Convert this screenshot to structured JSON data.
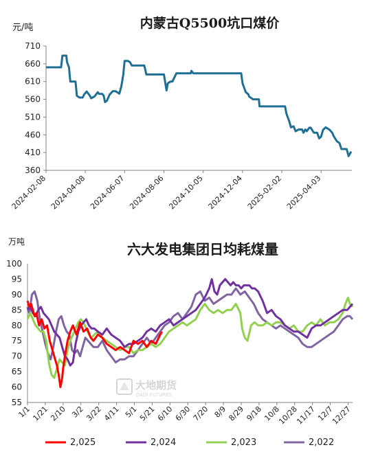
{
  "chart_data": [
    {
      "type": "line",
      "title": "内蒙古Q5500坑口煤价",
      "unit_label": "元/吨",
      "ylim": [
        360,
        710
      ],
      "yticks": [
        360,
        410,
        460,
        510,
        560,
        610,
        660,
        710
      ],
      "xticks": [
        "2024-02-08",
        "2024-04-08",
        "2024-06-07",
        "2024-08-06",
        "2024-10-05",
        "2024-12-04",
        "2025-02-02",
        "2025-04-03"
      ],
      "xrange": [
        "2024-02-08",
        "2025-05-20"
      ],
      "grid": false,
      "legend": "none",
      "color": "#1f6f93",
      "series": [
        {
          "x": [
            "2024-02-08",
            "2024-03-02",
            "2024-03-04",
            "2024-03-10",
            "2024-03-11",
            "2024-03-14",
            "2024-03-15",
            "2024-03-16",
            "2024-03-24",
            "2024-03-26",
            "2024-03-30",
            "2024-04-04",
            "2024-04-06",
            "2024-04-10",
            "2024-04-15",
            "2024-04-17",
            "2024-04-22",
            "2024-04-27",
            "2024-04-29",
            "2024-05-04",
            "2024-05-06",
            "2024-05-08",
            "2024-05-11",
            "2024-05-15",
            "2024-05-20",
            "2024-05-24",
            "2024-05-30",
            "2024-06-02",
            "2024-06-05",
            "2024-06-07",
            "2024-06-12",
            "2024-06-15",
            "2024-06-18",
            "2024-07-07",
            "2024-07-09",
            "2024-07-10",
            "2024-07-13",
            "2024-08-01",
            "2024-08-06",
            "2024-08-10",
            "2024-08-12",
            "2024-08-16",
            "2024-08-19",
            "2024-08-25",
            "2024-09-16",
            "2024-09-17",
            "2024-09-20",
            "2024-12-02",
            "2024-12-04",
            "2024-12-09",
            "2024-12-13",
            "2024-12-14",
            "2024-12-20",
            "2024-12-29",
            "2024-12-30",
            "2025-02-07",
            "2025-02-09",
            "2025-02-13",
            "2025-02-16",
            "2025-02-20",
            "2025-02-23",
            "2025-02-28",
            "2025-03-05",
            "2025-03-07",
            "2025-03-10",
            "2025-03-12",
            "2025-03-16",
            "2025-03-18",
            "2025-03-23",
            "2025-03-28",
            "2025-03-31",
            "2025-04-03",
            "2025-04-06",
            "2025-04-10",
            "2025-04-16",
            "2025-04-20",
            "2025-04-22",
            "2025-04-27",
            "2025-05-01",
            "2025-05-04",
            "2025-05-12",
            "2025-05-15",
            "2025-05-19"
          ],
          "y": [
            650,
            650,
            683,
            683,
            665,
            650,
            630,
            610,
            610,
            570,
            565,
            565,
            573,
            582,
            570,
            563,
            568,
            580,
            575,
            575,
            570,
            552,
            556,
            573,
            583,
            583,
            576,
            597,
            630,
            668,
            668,
            665,
            655,
            655,
            640,
            630,
            630,
            630,
            630,
            585,
            605,
            610,
            610,
            633,
            633,
            640,
            633,
            633,
            605,
            580,
            574,
            568,
            560,
            560,
            540,
            540,
            520,
            500,
            481,
            484,
            470,
            475,
            475,
            466,
            475,
            470,
            480,
            480,
            466,
            466,
            450,
            455,
            474,
            481,
            474,
            466,
            457,
            442,
            437,
            420,
            420,
            400,
            413
          ]
        }
      ]
    },
    {
      "type": "line",
      "title": "六大发电集团日均耗煤量",
      "unit_label": "万吨",
      "ylim": [
        55,
        100
      ],
      "yticks": [
        55,
        60,
        65,
        70,
        75,
        80,
        85,
        90,
        95,
        100
      ],
      "xticks": [
        "1/1",
        "1/21",
        "2/10",
        "3/2",
        "3/22",
        "4/11",
        "5/1",
        "5/21",
        "6/10",
        "6/30",
        "7/20",
        "8/9",
        "8/29",
        "9/18",
        "10/8",
        "10/28",
        "11/17",
        "12/7",
        "12/27"
      ],
      "grid": false,
      "legend": "bottom",
      "series": [
        {
          "name": "2,025",
          "color": "#ff0000",
          "x": [
            1,
            3,
            5,
            7,
            9,
            11,
            14,
            17,
            20,
            23,
            26,
            29,
            31,
            34,
            36,
            38,
            40,
            41,
            43,
            46,
            49,
            52,
            56,
            60,
            64,
            68,
            72,
            75,
            80,
            85,
            90,
            95,
            100,
            105,
            110,
            115,
            120,
            125,
            130,
            135,
            140,
            145,
            150,
            152
          ],
          "y": [
            88,
            86,
            87,
            85,
            83,
            84,
            80,
            82,
            79,
            80,
            75,
            72,
            70,
            67,
            64,
            60,
            63,
            66,
            70,
            75,
            78,
            80,
            77,
            81,
            78,
            79,
            76,
            75,
            77,
            76,
            74,
            73,
            72,
            73,
            72,
            71,
            75,
            74,
            75,
            73,
            75,
            74,
            77,
            78
          ]
        },
        {
          "name": "2,024",
          "color": "#7030a0",
          "x": [
            1,
            4,
            7,
            10,
            13,
            16,
            19,
            22,
            25,
            28,
            31,
            34,
            37,
            40,
            43,
            46,
            49,
            52,
            55,
            58,
            61,
            64,
            67,
            70,
            73,
            76,
            80,
            85,
            90,
            95,
            100,
            105,
            110,
            115,
            120,
            125,
            130,
            135,
            140,
            145,
            150,
            155,
            160,
            165,
            170,
            175,
            180,
            185,
            190,
            195,
            200,
            205,
            208,
            211,
            214,
            217,
            220,
            223,
            226,
            229,
            232,
            235,
            238,
            241,
            244,
            247,
            250,
            253,
            256,
            260,
            265,
            270,
            275,
            280,
            285,
            290,
            295,
            300,
            305,
            310,
            315,
            320,
            325,
            330,
            335,
            340,
            345,
            350,
            355,
            360,
            363,
            366
          ],
          "y": [
            85,
            86,
            84,
            83,
            85,
            86,
            84,
            83,
            82,
            80,
            78,
            77,
            76,
            73,
            70,
            69,
            67,
            68,
            74,
            78,
            80,
            81,
            82,
            80,
            79,
            79,
            78,
            77,
            79,
            77,
            76,
            75,
            73,
            74,
            74,
            75,
            76,
            78,
            79,
            78,
            80,
            81,
            82,
            80,
            81,
            82,
            83,
            84,
            85,
            87,
            89,
            92,
            95,
            91,
            90,
            93,
            94,
            95,
            94,
            93,
            94,
            93,
            93,
            92,
            93,
            93,
            93,
            92,
            92,
            91,
            88,
            84,
            85,
            83,
            82,
            80,
            79,
            78,
            78,
            77,
            76,
            79,
            80,
            80,
            81,
            82,
            83,
            84,
            85,
            85,
            86,
            87
          ]
        },
        {
          "name": "2,023",
          "color": "#92d050",
          "x": [
            1,
            4,
            7,
            10,
            13,
            16,
            19,
            22,
            25,
            28,
            31,
            34,
            37,
            40,
            43,
            46,
            49,
            52,
            55,
            58,
            61,
            64,
            67,
            70,
            73,
            76,
            80,
            85,
            90,
            95,
            100,
            105,
            110,
            115,
            120,
            125,
            130,
            135,
            140,
            145,
            150,
            155,
            160,
            165,
            170,
            175,
            180,
            185,
            190,
            195,
            200,
            205,
            210,
            215,
            220,
            225,
            230,
            235,
            240,
            242,
            245,
            248,
            252,
            256,
            260,
            265,
            270,
            275,
            280,
            285,
            290,
            295,
            300,
            305,
            310,
            315,
            320,
            325,
            330,
            335,
            340,
            345,
            350,
            355,
            358,
            361,
            363,
            366
          ],
          "y": [
            82,
            84,
            82,
            80,
            79,
            78,
            78,
            75,
            68,
            64,
            63,
            66,
            69,
            68,
            67,
            72,
            75,
            77,
            79,
            81,
            82,
            81,
            79,
            77,
            76,
            77,
            78,
            76,
            75,
            74,
            73,
            72,
            73,
            73,
            71,
            72,
            72,
            73,
            74,
            73,
            74,
            76,
            78,
            79,
            80,
            81,
            80,
            81,
            82,
            85,
            87,
            85,
            84,
            85,
            84,
            85,
            85,
            87,
            84,
            79,
            76,
            75,
            80,
            81,
            80,
            80,
            81,
            80,
            81,
            81,
            80,
            79,
            80,
            78,
            78,
            80,
            81,
            80,
            82,
            80,
            81,
            81,
            82,
            84,
            87,
            89,
            87,
            86
          ]
        },
        {
          "name": "2,022",
          "color": "#8064a2",
          "x": [
            1,
            3,
            6,
            9,
            12,
            15,
            18,
            21,
            24,
            27,
            30,
            33,
            36,
            39,
            42,
            45,
            48,
            51,
            54,
            57,
            60,
            63,
            66,
            69,
            72,
            75,
            80,
            85,
            90,
            95,
            100,
            105,
            110,
            115,
            120,
            125,
            130,
            135,
            140,
            145,
            150,
            155,
            160,
            165,
            170,
            175,
            180,
            185,
            190,
            195,
            200,
            205,
            210,
            215,
            220,
            225,
            230,
            235,
            240,
            245,
            250,
            255,
            260,
            265,
            270,
            275,
            280,
            285,
            290,
            295,
            300,
            305,
            310,
            315,
            320,
            325,
            330,
            335,
            340,
            345,
            350,
            355,
            360,
            363,
            366
          ],
          "y": [
            86,
            84,
            90,
            91,
            88,
            82,
            78,
            74,
            71,
            69,
            73,
            78,
            82,
            83,
            80,
            78,
            77,
            72,
            71,
            72,
            70,
            73,
            76,
            75,
            74,
            73,
            73,
            75,
            72,
            70,
            68,
            69,
            69,
            70,
            70,
            72,
            74,
            76,
            74,
            76,
            78,
            80,
            81,
            83,
            84,
            82,
            84,
            86,
            90,
            91,
            88,
            89,
            87,
            88,
            89,
            90,
            90,
            92,
            90,
            91,
            89,
            87,
            84,
            82,
            81,
            80,
            79,
            80,
            79,
            78,
            77,
            76,
            74,
            73,
            73,
            74,
            75,
            76,
            77,
            78,
            80,
            82,
            83,
            83,
            82
          ]
        }
      ]
    }
  ]
}
